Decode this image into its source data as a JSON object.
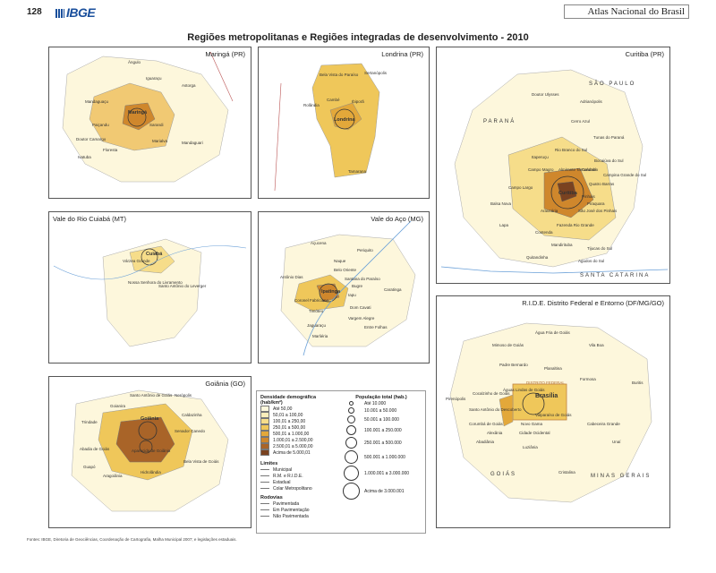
{
  "page": {
    "number": "128",
    "logo": "IBGE",
    "atlas": "Atlas Nacional do Brasil",
    "title": "Regiões metropolitanas e Regiões integradas de desenvolvimento - 2010",
    "sources": "Fontes: IBGE, Diretoria de Geociências, Coordenação de Cartografia, Malha Municipal 2007; e legislações estaduais."
  },
  "panels": [
    {
      "title": "Maringá (PR)",
      "center": "Maringá",
      "places": [
        "Ângulo",
        "Iguaraçu",
        "Astorga",
        "Mandaguaçu",
        "Paiçandu",
        "Sarandi",
        "Doutor Camargo",
        "Floresta",
        "Marialva",
        "Mandaguari",
        "Itambé",
        "Ivatuba",
        "Itambé"
      ]
    },
    {
      "title": "Londrina (PR)",
      "center": "Londrina",
      "places": [
        "Bela Vista do Paraíso",
        "Sertanópolis",
        "Cambé",
        "Ibiporã",
        "Rolândia",
        "Tamarana"
      ]
    },
    {
      "title": "Curitiba (PR)",
      "center": "Curitiba",
      "places": [
        "Doutor Ulysses",
        "Adrianópolis",
        "Cerro Azul",
        "Tunas do Paraná",
        "Rio Branco do Sul",
        "Bocaiúva do Sul",
        "Itaperuçu",
        "Campo Magro",
        "Almirante Tamandaré",
        "Colombo",
        "Campina Grande do Sul",
        "Quatro Barras",
        "Campo Largo",
        "Pinhais",
        "Piraquara",
        "Araucária",
        "São José dos Pinhais",
        "Balsa Nova",
        "Lapa",
        "Contenda",
        "Fazenda Rio Grande",
        "Mandirituba",
        "Tijucas do Sul",
        "Quitandinha",
        "Agudos do Sul"
      ],
      "regions": [
        "SÃO PAULO",
        "PARANÁ",
        "SANTA CATARINA"
      ]
    },
    {
      "title": "Vale do Rio Cuiabá (MT)",
      "center": "Cuiabá",
      "places": [
        "Várzea Grande",
        "Nossa Senhora do Livramento",
        "Santo Antônio do Leverger"
      ]
    },
    {
      "title": "Vale do Aço (MG)",
      "center": "Ipatinga",
      "places": [
        "Açucena",
        "Periquito",
        "Naque",
        "Belo Oriente",
        "Coronel Fabriciano",
        "Timóteo",
        "Santana do Paraíso",
        "Bugre",
        "Iapu",
        "Caratinga",
        "Antônio Dias",
        "Jaguaraçu",
        "Marliéria",
        "Dom Cavati",
        "Entre Folhas",
        "Vargem Alegre",
        "São João do Oriente",
        "Pingo-d'Água",
        "Córrego Novo",
        "Bom Jesus do Galho",
        "São José do Goiabal"
      ]
    },
    {
      "title": "Goiânia (GO)",
      "center": "Goiânia",
      "places": [
        "Santo Antônio de Goiás",
        "Nerópolis",
        "Goianira",
        "Trindade",
        "Senador Canedo",
        "Abadia de Goiás",
        "Aparecida de Goiânia",
        "Bela Vista de Goiás",
        "Guapó",
        "Aragoiânia",
        "Hidrolândia",
        "Caldazinha"
      ]
    },
    {
      "title": "R.I.D.E.  Distrito Federal e Entorno (DF/MG/GO)",
      "center": "Brasília",
      "places": [
        "Água Fria de Goiás",
        "Mimoso de Goiás",
        "Vila Boa",
        "Padre Bernardo",
        "Planaltina",
        "Formosa",
        "Buritis",
        "Pirenópolis",
        "Cocalzinho de Goiás",
        "Águas Lindas de Goiás",
        "Santo Antônio do Descoberto",
        "Novo Gama",
        "Valparaíso de Goiás",
        "Cidade Ocidental",
        "Luziânia",
        "Cristalina",
        "Cabeceira Grande",
        "Unaí",
        "Alexânia",
        "Abadiânia",
        "Corumbá de Goiás",
        "DISTRITO FEDERAL"
      ],
      "regions": [
        "GOIÁS",
        "MINAS GERAIS"
      ]
    }
  ],
  "legend": {
    "density_title": "Densidade demográfica",
    "density_unit": "(hab/km²)",
    "density_classes": [
      {
        "label": "Até 50,00",
        "color": "#fdf7dc"
      },
      {
        "label": "50,01 a 100,00",
        "color": "#fbeebb"
      },
      {
        "label": "100,01 a 250,00",
        "color": "#f6dd8a"
      },
      {
        "label": "250,01 a 500,00",
        "color": "#efc75a"
      },
      {
        "label": "500,01 a 1.000,00",
        "color": "#e3a83a"
      },
      {
        "label": "1.000,01 a 2.500,00",
        "color": "#cf872c"
      },
      {
        "label": "2.500,01 a 5.000,00",
        "color": "#a96428"
      },
      {
        "label": "Acima de 5.000,01",
        "color": "#7a4220"
      }
    ],
    "pop_title": "População total (hab.)",
    "pop_classes": [
      "Até 10.000",
      "10.001 a 50.000",
      "50.001 a 100.000",
      "100.001 a 250.000",
      "250.001 a 500.000",
      "500.001 a 1.000.000",
      "1.000.001 a 3.000.000",
      "Acima de 3.000.001"
    ],
    "limits_title": "Limites",
    "limits": [
      "Municipal",
      "R.M. e R.I.D.E.",
      "Estadual",
      "Colar Metropolitano"
    ],
    "roads_title": "Rodovias",
    "roads": [
      "Pavimentada",
      "Em Pavimentação",
      "Não Pavimentada"
    ]
  }
}
